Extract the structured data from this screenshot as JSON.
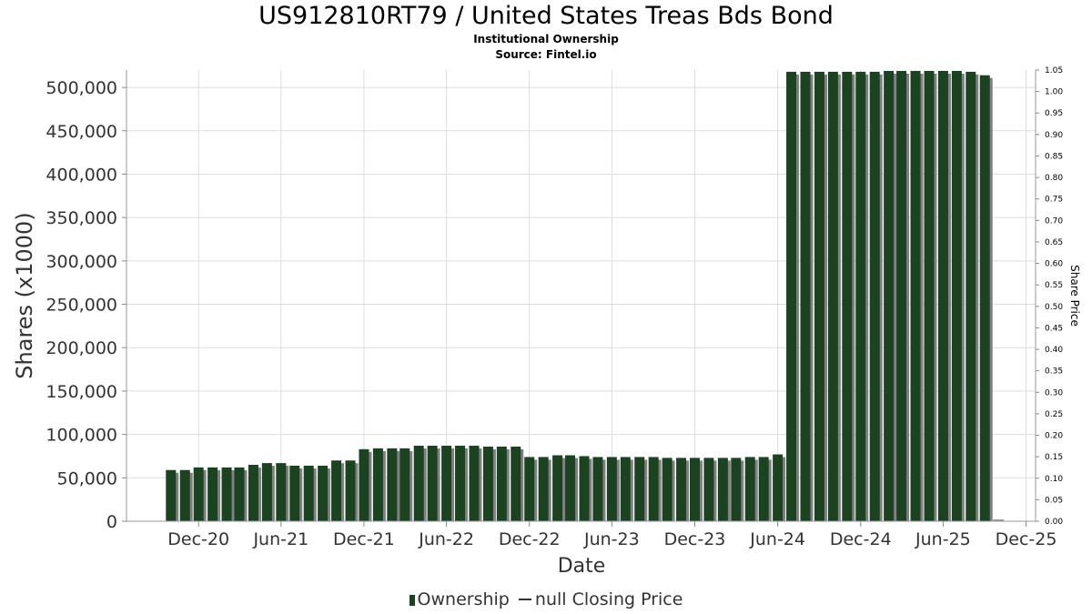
{
  "header": {
    "title": "US912810RT79 / United States Treas Bds Bond",
    "subtitle": "Institutional Ownership",
    "source": "Source: Fintel.io"
  },
  "legend": {
    "ownership_label": "Ownership",
    "price_label": "null Closing Price"
  },
  "colors": {
    "bar": "#1b4321",
    "bar_shadow": "#808080",
    "grid": "#dddddd"
  },
  "chart_data": {
    "type": "bar",
    "xlabel": "Date",
    "ylabel": "Shares (x1000)",
    "y2label": "Share Price",
    "ylim": [
      0,
      520000
    ],
    "y2lim": [
      0,
      1.05
    ],
    "xlim": [
      "2020-06-25",
      "2025-12-22"
    ],
    "x_ticks": [
      {
        "label": "Dec-20",
        "date": "2020-12-01"
      },
      {
        "label": "Jun-21",
        "date": "2021-06-01"
      },
      {
        "label": "Dec-21",
        "date": "2021-12-01"
      },
      {
        "label": "Jun-22",
        "date": "2022-06-01"
      },
      {
        "label": "Dec-22",
        "date": "2022-12-01"
      },
      {
        "label": "Jun-23",
        "date": "2023-06-01"
      },
      {
        "label": "Dec-23",
        "date": "2023-12-01"
      },
      {
        "label": "Jun-24",
        "date": "2024-06-01"
      },
      {
        "label": "Dec-24",
        "date": "2024-12-01"
      },
      {
        "label": "Jun-25",
        "date": "2025-06-01"
      },
      {
        "label": "Dec-25",
        "date": "2025-12-01"
      }
    ],
    "y_ticks": [
      0,
      50000,
      100000,
      150000,
      200000,
      250000,
      300000,
      350000,
      400000,
      450000,
      500000
    ],
    "y_tick_labels": [
      "0",
      "50,000",
      "100,000",
      "150,000",
      "200,000",
      "250,000",
      "300,000",
      "350,000",
      "400,000",
      "450,000",
      "500,000"
    ],
    "y2_ticks": [
      "0.00",
      "0.05",
      "0.10",
      "0.15",
      "0.20",
      "0.25",
      "0.30",
      "0.35",
      "0.40",
      "0.45",
      "0.50",
      "0.55",
      "0.60",
      "0.65",
      "0.70",
      "0.75",
      "0.80",
      "0.85",
      "0.90",
      "0.95",
      "1.00",
      "1.05"
    ],
    "series": [
      {
        "name": "Ownership",
        "x": [
          "2020-10-01",
          "2020-11-01",
          "2020-12-01",
          "2021-01-01",
          "2021-02-01",
          "2021-03-01",
          "2021-04-01",
          "2021-05-01",
          "2021-06-01",
          "2021-07-01",
          "2021-08-01",
          "2021-09-01",
          "2021-10-01",
          "2021-11-01",
          "2021-12-01",
          "2022-01-01",
          "2022-02-01",
          "2022-03-01",
          "2022-04-01",
          "2022-05-01",
          "2022-06-01",
          "2022-07-01",
          "2022-08-01",
          "2022-09-01",
          "2022-10-01",
          "2022-11-01",
          "2022-12-01",
          "2023-01-01",
          "2023-02-01",
          "2023-03-01",
          "2023-04-01",
          "2023-05-01",
          "2023-06-01",
          "2023-07-01",
          "2023-08-01",
          "2023-09-01",
          "2023-10-01",
          "2023-11-01",
          "2023-12-01",
          "2024-01-01",
          "2024-02-01",
          "2024-03-01",
          "2024-04-01",
          "2024-05-01",
          "2024-06-01",
          "2024-07-01",
          "2024-08-01",
          "2024-09-01",
          "2024-10-01",
          "2024-11-01",
          "2024-12-01",
          "2025-01-01",
          "2025-02-01",
          "2025-03-01",
          "2025-04-01",
          "2025-05-01",
          "2025-06-01",
          "2025-07-01",
          "2025-08-01",
          "2025-09-01"
        ],
        "values": [
          59000,
          59000,
          62000,
          62000,
          62000,
          62000,
          65000,
          67000,
          67000,
          64000,
          64000,
          64000,
          70000,
          70000,
          83000,
          84000,
          84000,
          84000,
          87000,
          87000,
          87000,
          87000,
          87000,
          86000,
          86000,
          86000,
          74000,
          74000,
          76000,
          76000,
          75000,
          74000,
          74000,
          74000,
          74000,
          74000,
          73000,
          73000,
          73000,
          73000,
          73000,
          73000,
          74000,
          74000,
          77000,
          518000,
          518000,
          518000,
          518000,
          518000,
          518000,
          518000,
          519000,
          519000,
          519000,
          519000,
          519000,
          519000,
          518000,
          514000
        ]
      }
    ]
  }
}
